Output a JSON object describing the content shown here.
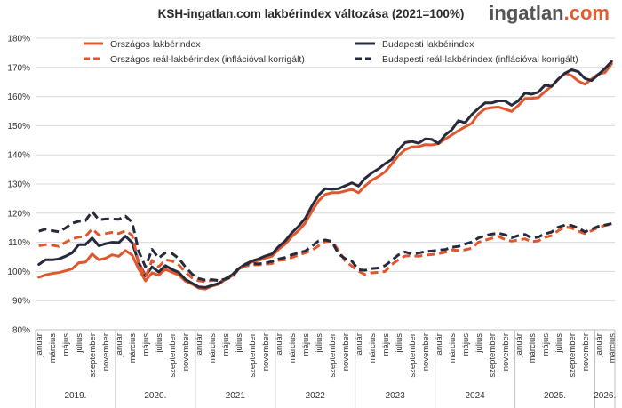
{
  "title": "KSH-ingatlan.com lakbérindex változása (2021=100%)",
  "logo": {
    "name": "ingatlan",
    "tld": "com",
    "brand_color": "#e35b2e"
  },
  "chart_data": {
    "type": "line",
    "y_ticks": [
      "80%",
      "90%",
      "100%",
      "110%",
      "120%",
      "130%",
      "140%",
      "150%",
      "160%",
      "170%",
      "180%"
    ],
    "ylim": [
      80,
      180
    ],
    "grid": true,
    "legend_placement": "top-left",
    "x_month_labels": [
      "január",
      "március",
      "május",
      "július",
      "szeptember",
      "november"
    ],
    "x_last_year_month_labels": [
      "január",
      "március"
    ],
    "years": [
      "2019.",
      "2020.",
      "2021",
      "2022",
      "2023",
      "2024",
      "2025.",
      "2026."
    ],
    "x_start": "2019-01",
    "series": [
      {
        "name": "Országos lakbérindex",
        "color": "#e0572e",
        "dashed": false,
        "values": [
          98.0,
          98.8,
          99.3,
          99.6,
          100.2,
          100.9,
          103.0,
          103.2,
          106.0,
          104.0,
          104.5,
          105.7,
          105.2,
          107.2,
          105.6,
          100.8,
          96.8,
          99.5,
          98.7,
          100.8,
          99.7,
          98.8,
          96.7,
          95.7,
          94.3,
          94.0,
          95.0,
          95.6,
          97.3,
          98.5,
          100.8,
          102.3,
          103.2,
          103.8,
          104.6,
          105.2,
          107.6,
          109.4,
          112.0,
          114.0,
          116.6,
          120.6,
          124.2,
          126.4,
          127.0,
          127.0,
          127.6,
          128.2,
          127.0,
          129.4,
          131.3,
          132.6,
          134.2,
          136.9,
          139.7,
          141.8,
          142.7,
          142.8,
          143.5,
          143.4,
          143.8,
          145.4,
          146.8,
          148.3,
          149.6,
          150.8,
          154.0,
          155.8,
          156.2,
          156.4,
          155.7,
          154.9,
          156.9,
          159.3,
          159.4,
          159.6,
          161.7,
          163.5,
          165.9,
          168.0,
          167.2,
          165.3,
          164.2,
          166.0,
          167.7,
          168.2,
          171.2
        ]
      },
      {
        "name": "Budapesti lakbérindex",
        "color": "#262a3b",
        "dashed": false,
        "values": [
          102.4,
          104.0,
          104.0,
          104.3,
          105.2,
          106.4,
          109.2,
          109.2,
          111.5,
          108.8,
          109.5,
          110.0,
          109.9,
          112.1,
          109.9,
          103.0,
          98.5,
          101.6,
          99.8,
          102.0,
          100.7,
          99.7,
          97.3,
          96.0,
          94.7,
          94.5,
          95.2,
          95.9,
          97.5,
          98.8,
          101.0,
          102.5,
          103.6,
          104.3,
          105.3,
          106.0,
          108.5,
          110.5,
          113.3,
          115.5,
          118.2,
          122.5,
          126.2,
          128.4,
          128.2,
          128.4,
          129.4,
          130.4,
          129.3,
          132.0,
          133.8,
          135.2,
          137.0,
          138.4,
          141.8,
          144.2,
          144.6,
          144.0,
          145.5,
          145.3,
          143.9,
          146.8,
          148.6,
          151.7,
          151.0,
          153.8,
          155.9,
          157.8,
          157.8,
          158.5,
          158.5,
          157.0,
          158.5,
          161.2,
          160.8,
          161.5,
          163.9,
          163.5,
          166.0,
          168.0,
          169.2,
          168.5,
          166.2,
          165.5,
          167.5,
          169.6,
          172.0
        ]
      },
      {
        "name": "Országos reál-lakbérindex (inflációval korrigált)",
        "color": "#e0572e",
        "dashed": true,
        "values": [
          108.8,
          109.2,
          109.0,
          108.6,
          110.0,
          111.2,
          111.8,
          112.0,
          114.6,
          112.5,
          113.0,
          113.4,
          113.0,
          114.0,
          112.4,
          102.8,
          98.0,
          103.8,
          101.6,
          104.0,
          103.6,
          102.3,
          99.8,
          97.8,
          96.8,
          96.5,
          97.0,
          97.0,
          97.2,
          98.0,
          100.8,
          101.8,
          102.3,
          102.3,
          102.5,
          102.7,
          103.8,
          104.0,
          104.8,
          105.6,
          106.4,
          107.2,
          108.8,
          110.2,
          110.4,
          107.3,
          103.6,
          101.8,
          100.1,
          98.9,
          99.5,
          99.7,
          100.0,
          102.4,
          104.0,
          105.3,
          105.4,
          105.2,
          105.6,
          105.8,
          106.1,
          106.6,
          107.4,
          107.2,
          107.4,
          108.0,
          110.0,
          110.7,
          111.4,
          112.0,
          111.0,
          110.4,
          110.8,
          111.2,
          110.2,
          110.5,
          111.7,
          112.3,
          114.0,
          115.3,
          114.9,
          113.8,
          113.0,
          114.0,
          115.1,
          115.8,
          116.2
        ]
      },
      {
        "name": "Budapesti reál-lakbérindex (inflációval korrigált)",
        "color": "#262a3b",
        "dashed": true,
        "values": [
          113.8,
          114.5,
          114.0,
          113.6,
          114.9,
          116.6,
          117.2,
          117.4,
          120.6,
          117.7,
          118.0,
          118.0,
          117.9,
          119.0,
          116.9,
          106.8,
          101.6,
          107.6,
          104.6,
          106.4,
          106.2,
          104.5,
          101.6,
          99.1,
          97.6,
          97.0,
          97.2,
          96.9,
          97.4,
          98.1,
          101.1,
          102.4,
          102.7,
          102.6,
          102.9,
          103.4,
          104.3,
          104.8,
          105.7,
          106.4,
          107.0,
          108.7,
          110.5,
          110.8,
          110.3,
          106.0,
          104.4,
          103.5,
          100.6,
          100.4,
          101.0,
          101.2,
          102.0,
          103.8,
          105.7,
          106.7,
          106.0,
          106.3,
          106.8,
          107.0,
          107.3,
          107.5,
          108.3,
          108.6,
          109.4,
          110.1,
          111.5,
          112.3,
          112.8,
          113.1,
          112.6,
          111.6,
          112.3,
          112.7,
          111.5,
          111.8,
          112.9,
          113.5,
          115.2,
          115.9,
          115.8,
          114.9,
          113.6,
          114.5,
          115.5,
          115.9,
          116.4
        ]
      }
    ]
  }
}
